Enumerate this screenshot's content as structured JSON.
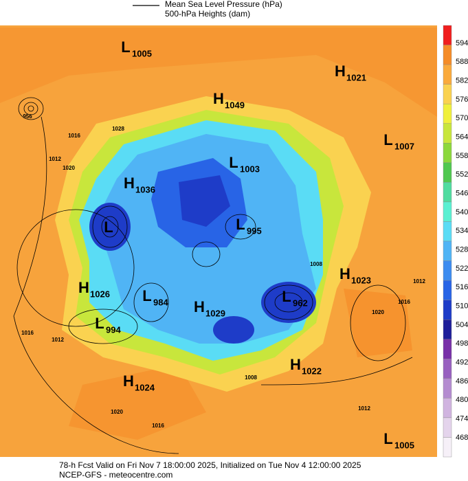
{
  "header": {
    "legend": [
      "Mean Sea Level Pressure (hPa)",
      "500-hPa Heights (dam)"
    ]
  },
  "colorbar": {
    "levels": [
      594,
      588,
      582,
      576,
      570,
      564,
      558,
      552,
      546,
      540,
      534,
      528,
      522,
      516,
      510,
      504,
      498,
      492,
      486,
      480,
      474,
      468
    ],
    "colors": [
      "#f01e1e",
      "#f58c28",
      "#faaa3c",
      "#fad250",
      "#f0f03c",
      "#c8e63c",
      "#8cd83c",
      "#50c850",
      "#50dca0",
      "#5af0d2",
      "#5adcf5",
      "#50b4f5",
      "#3c8cf0",
      "#2864e6",
      "#1e3cc8",
      "#1e1e9a",
      "#7830a8",
      "#9860c0",
      "#b48cd0",
      "#d0b4e0",
      "#e4d4ec",
      "#f6f0f8"
    ]
  },
  "centers": [
    {
      "letter": "L",
      "value": 1005
    },
    {
      "letter": "H",
      "value": 1021
    },
    {
      "letter": "H",
      "value": 1049
    },
    {
      "letter": "L",
      "value": 1007
    },
    {
      "letter": "L",
      "value": 1003
    },
    {
      "letter": "H",
      "value": 1036
    },
    {
      "letter": "L"
    },
    {
      "letter": "L",
      "value": 995
    },
    {
      "letter": "H",
      "value": 1023
    },
    {
      "letter": "H",
      "value": 1026
    },
    {
      "letter": "L",
      "value": 984
    },
    {
      "letter": "L",
      "value": 962
    },
    {
      "letter": "H",
      "value": 1029
    },
    {
      "letter": "L",
      "value": 994
    },
    {
      "letter": "H",
      "value": 1022
    },
    {
      "letter": "H",
      "value": 1024
    },
    {
      "letter": "L",
      "value": 1005
    }
  ],
  "isobar_labels": [
    956,
    1016,
    1020,
    1028,
    1012,
    1020,
    1016,
    1012,
    1008,
    1008,
    1012,
    1020,
    1016,
    1012,
    1016
  ],
  "footer": [
    "78-h Fcst Valid on Fri Nov  7 18:00:00 2025, Initialized on Tue Nov  4 12:00:00 2025",
    "NCEP-GFS  - meteocentre.com"
  ]
}
